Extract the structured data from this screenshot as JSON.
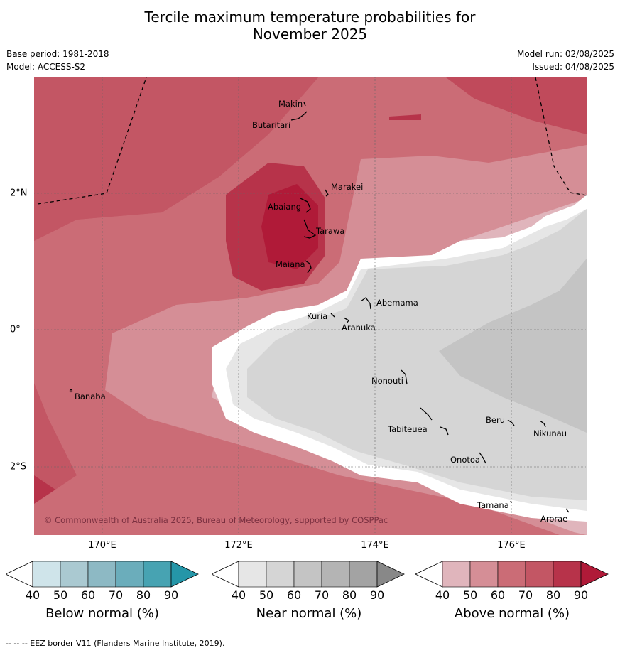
{
  "title_line1": "Tercile maximum temperature probabilities for",
  "title_line2": "November 2025",
  "base_period": "Base period: 1981-2018",
  "model": "Model: ACCESS-S2",
  "model_run": "Model run: 02/08/2025",
  "issued": "Issued: 04/08/2025",
  "copyright": "© Commonwealth of Australia 2025, Bureau of Meteorology, supported by COSPPac",
  "lon_labels": [
    "170°E",
    "172°E",
    "174°E",
    "176°E"
  ],
  "lat_labels": [
    "2°N",
    "0°",
    "2°S"
  ],
  "places": {
    "makin": "Makin",
    "butaritari": "Butaritari",
    "marakei": "Marakei",
    "abaiang": "Abaiang",
    "tarawa": "Tarawa",
    "maiana": "Maiana",
    "abemama": "Abemama",
    "kuria": "Kuria",
    "aranuka": "Aranuka",
    "banaba": "Banaba",
    "nonouti": "Nonouti",
    "tabiteuea": "Tabiteuea",
    "beru": "Beru",
    "nikunau": "Nikunau",
    "onotoa": "Onotoa",
    "tamana": "Tamana",
    "arorae": "Arorae"
  },
  "colorbars": [
    {
      "name": "Below normal (%)",
      "ticks": [
        "40",
        "50",
        "60",
        "70",
        "80",
        "90"
      ],
      "colors": [
        "#cfe4ea",
        "#aac9d1",
        "#8db9c4",
        "#6badbb",
        "#47a3b2",
        "#2596a8"
      ]
    },
    {
      "name": "Near normal (%)",
      "ticks": [
        "40",
        "50",
        "60",
        "70",
        "80",
        "90"
      ],
      "colors": [
        "#e6e6e6",
        "#d5d5d5",
        "#c4c4c4",
        "#b4b4b4",
        "#a3a3a3",
        "#888888"
      ]
    },
    {
      "name": "Above normal (%)",
      "ticks": [
        "40",
        "50",
        "60",
        "70",
        "80",
        "90"
      ],
      "colors": [
        "#e0b5bc",
        "#d58e96",
        "#cb6c76",
        "#c35664",
        "#b7334a",
        "#b01a38"
      ]
    }
  ],
  "footer": "-- -- -- EEZ border V11 (Flanders Marine Institute, 2019)."
}
